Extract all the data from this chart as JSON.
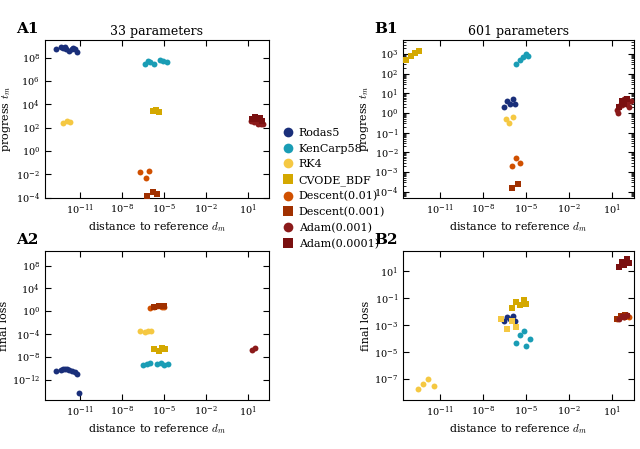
{
  "title_A1": "33 parameters",
  "title_B1": "601 parameters",
  "xlabel": "distance to reference $d_m$",
  "ylabel_top": "progress $t_m$",
  "ylabel_bot": "final loss",
  "legend_entries": [
    {
      "label": "Rodas5",
      "color": "#1a2f7a",
      "marker": "o"
    },
    {
      "label": "KenCarp58",
      "color": "#1a9db5",
      "marker": "o"
    },
    {
      "label": "RK4",
      "color": "#f5c842",
      "marker": "o"
    },
    {
      "label": "CVODE_BDF",
      "color": "#d4a800",
      "marker": "s"
    },
    {
      "label": "Descent(0.01)",
      "color": "#d05000",
      "marker": "o"
    },
    {
      "label": "Descent(0.001)",
      "color": "#a03000",
      "marker": "s"
    },
    {
      "label": "Adam(0.001)",
      "color": "#8b1a1a",
      "marker": "o"
    },
    {
      "label": "Adam(0.0001)",
      "color": "#7a1010",
      "marker": "s"
    }
  ],
  "A1": {
    "xlim": [
      3e-14,
      300.0
    ],
    "ylim": [
      0.0001,
      3000000000.0
    ],
    "xticks": [
      1e-12,
      1e-05,
      100.0
    ],
    "yticks": [
      0.001,
      1000.0,
      1000000000.0
    ],
    "series": [
      {
        "color": "#1a2f7a",
        "marker": "o",
        "x": [
          2e-13,
          4e-13,
          6e-13,
          9e-13,
          1.5e-12,
          2.5e-12,
          4e-12,
          6e-12,
          1e-12,
          3e-12
        ],
        "y": [
          500000000.0,
          800000000.0,
          700000000.0,
          900000000.0,
          400000000.0,
          600000000.0,
          500000000.0,
          300000000.0,
          600000000.0,
          700000000.0
        ]
      },
      {
        "color": "#1a9db5",
        "marker": "o",
        "x": [
          4e-07,
          7e-07,
          1e-06,
          2e-06,
          5e-06,
          8e-06,
          1.5e-05
        ],
        "y": [
          30000000.0,
          50000000.0,
          40000000.0,
          30000000.0,
          60000000.0,
          50000000.0,
          40000000.0
        ]
      },
      {
        "color": "#f5c842",
        "marker": "o",
        "x": [
          6e-13,
          1.2e-12,
          2e-12
        ],
        "y": [
          250.0,
          400.0,
          300.0
        ]
      },
      {
        "color": "#d4a800",
        "marker": "s",
        "x": [
          1.5e-06,
          2.5e-06,
          4e-06
        ],
        "y": [
          2500.0,
          3500.0,
          2000.0
        ]
      },
      {
        "color": "#d05000",
        "marker": "o",
        "x": [
          2e-07,
          5e-07,
          9e-07
        ],
        "y": [
          0.015,
          0.005,
          0.02
        ]
      },
      {
        "color": "#a03000",
        "marker": "s",
        "x": [
          6e-07,
          1.5e-06,
          3e-06
        ],
        "y": [
          0.00015,
          0.0003,
          0.0002
        ]
      },
      {
        "color": "#8b1a1a",
        "marker": "o",
        "x": [
          15.0,
          25.0,
          35.0,
          50.0,
          70.0,
          90.0,
          120.0,
          20.0,
          40.0,
          60.0,
          80.0
        ],
        "y": [
          400.0,
          300.0,
          500.0,
          200.0,
          400.0,
          300.0,
          200.0,
          500.0,
          400.0,
          300.0,
          200.0
        ]
      },
      {
        "color": "#7a1010",
        "marker": "s",
        "x": [
          20.0,
          30.0,
          50.0,
          70.0,
          100.0
        ],
        "y": [
          600.0,
          800.0,
          500.0,
          700.0,
          400.0
        ]
      }
    ]
  },
  "A2": {
    "xlim": [
      3e-14,
      300.0
    ],
    "ylim": [
      3e-16,
      30000000000.0
    ],
    "xticks": [
      1e-12,
      1e-05,
      100.0
    ],
    "yticks": [
      1e-15,
      1e-07,
      10.0
    ],
    "series": [
      {
        "color": "#1a2f7a",
        "marker": "o",
        "x": [
          2e-13,
          4e-13,
          6e-13,
          9e-13,
          1.5e-12,
          2.5e-12,
          4e-12,
          6e-12,
          8e-12,
          1.2e-12
        ],
        "y": [
          3e-11,
          5e-11,
          8e-11,
          6e-11,
          4e-11,
          3e-11,
          2e-11,
          1e-11,
          5e-15,
          7e-11
        ]
      },
      {
        "color": "#1a9db5",
        "marker": "o",
        "x": [
          3e-07,
          6e-07,
          1e-06,
          3e-06,
          6e-06,
          1e-05,
          2e-05
        ],
        "y": [
          4e-10,
          6e-10,
          8e-10,
          5e-10,
          7e-10,
          4e-10,
          6e-10
        ]
      },
      {
        "color": "#f5c842",
        "marker": "o",
        "x": [
          2e-07,
          4e-07,
          7e-07,
          1.2e-06
        ],
        "y": [
          0.0003,
          0.0002,
          0.0004,
          0.0003
        ]
      },
      {
        "color": "#d4a800",
        "marker": "s",
        "x": [
          2e-06,
          4e-06,
          7e-06,
          1.2e-05
        ],
        "y": [
          2e-07,
          1e-07,
          3e-07,
          2e-07
        ]
      },
      {
        "color": "#d05000",
        "marker": "o",
        "x": [
          1e-06,
          2e-06,
          3e-06,
          5e-06,
          7e-06,
          1e-05
        ],
        "y": [
          3.0,
          5.0,
          8.0,
          7.0,
          6.0,
          5.0
        ]
      },
      {
        "color": "#a03000",
        "marker": "s",
        "x": [
          2e-06,
          4e-06,
          7e-06,
          1e-05
        ],
        "y": [
          5.0,
          9.0,
          8.0,
          7.0
        ]
      },
      {
        "color": "#8b1a1a",
        "marker": "o",
        "x": [
          20.0,
          30.0
        ],
        "y": [
          1.5e-07,
          3e-07
        ]
      }
    ]
  },
  "B1": {
    "xlim": [
      3e-14,
      300.0
    ],
    "ylim": [
      5e-05,
      5000.0
    ],
    "xticks": [
      1e-12,
      1e-05,
      100.0
    ],
    "yticks": [
      0.001,
      1.0,
      1000.0
    ],
    "series": [
      {
        "color": "#1a2f7a",
        "marker": "o",
        "x": [
          3e-07,
          5e-07,
          8e-07,
          1.2e-06,
          1.8e-06
        ],
        "y": [
          2.0,
          4.0,
          3.0,
          5.0,
          3.0
        ]
      },
      {
        "color": "#1a9db5",
        "marker": "o",
        "x": [
          2e-06,
          4e-06,
          6e-06,
          1e-05,
          1.5e-05
        ],
        "y": [
          300.0,
          500.0,
          700.0,
          1000.0,
          800.0
        ]
      },
      {
        "color": "#f5c842",
        "marker": "o",
        "x": [
          4e-07,
          7e-07,
          1.2e-06
        ],
        "y": [
          0.5,
          0.3,
          0.6
        ]
      },
      {
        "color": "#d4a800",
        "marker": "s",
        "x": [
          5e-14,
          1e-13,
          2e-13,
          4e-13
        ],
        "y": [
          500.0,
          800.0,
          1200.0,
          1500.0
        ]
      },
      {
        "color": "#d05000",
        "marker": "o",
        "x": [
          1e-06,
          2e-06,
          4e-06
        ],
        "y": [
          0.002,
          0.005,
          0.003
        ]
      },
      {
        "color": "#a03000",
        "marker": "s",
        "x": [
          1e-06,
          3e-06
        ],
        "y": [
          0.00015,
          0.00025
        ]
      },
      {
        "color": "#8b1a1a",
        "marker": "o",
        "x": [
          20.0,
          30.0,
          40.0,
          60.0,
          80.0,
          100.0,
          150.0,
          200.0,
          25.0,
          50.0,
          70.0,
          90.0
        ],
        "y": [
          1.5,
          2.0,
          3.0,
          5.0,
          4.0,
          3.0,
          2.0,
          4.0,
          1.0,
          2.5,
          4.0,
          3.0
        ]
      },
      {
        "color": "#7a1010",
        "marker": "s",
        "x": [
          30.0,
          50.0,
          70.0,
          100.0
        ],
        "y": [
          2.0,
          4.0,
          3.0,
          5.0
        ]
      }
    ]
  },
  "B2": {
    "xlim": [
      3e-14,
      300.0
    ],
    "ylim": [
      3e-09,
      300.0
    ],
    "xticks": [
      1e-12,
      1e-05,
      100.0
    ],
    "yticks": [
      1e-08,
      0.001,
      100.0
    ],
    "series": [
      {
        "color": "#1a2f7a",
        "marker": "o",
        "x": [
          3e-07,
          5e-07,
          8e-07,
          1.2e-06,
          1.8e-06
        ],
        "y": [
          0.002,
          0.004,
          0.003,
          0.005,
          0.002
        ]
      },
      {
        "color": "#1a9db5",
        "marker": "o",
        "x": [
          2e-06,
          4e-06,
          7e-06,
          1e-05,
          2e-05
        ],
        "y": [
          5e-05,
          0.0002,
          0.0004,
          3e-05,
          0.0001
        ]
      },
      {
        "color": "#f5c842",
        "marker": "o",
        "x": [
          3e-13,
          7e-13,
          1.5e-12,
          4e-12
        ],
        "y": [
          2e-08,
          4e-08,
          1e-07,
          3e-08
        ]
      },
      {
        "color": "#f5c842",
        "marker": "s",
        "x": [
          2e-07,
          5e-07,
          1e-06,
          2e-06
        ],
        "y": [
          0.003,
          0.0005,
          0.002,
          0.0008
        ]
      },
      {
        "color": "#d4a800",
        "marker": "s",
        "x": [
          1e-06,
          2e-06,
          4e-06,
          7e-06,
          1e-05
        ],
        "y": [
          0.02,
          0.05,
          0.03,
          0.08,
          0.04
        ]
      },
      {
        "color": "#d05000",
        "marker": "o",
        "x": [
          20.0,
          40.0,
          60.0,
          80.0,
          100.0,
          150.0
        ],
        "y": [
          0.003,
          0.005,
          0.004,
          0.006,
          0.005,
          0.004
        ]
      },
      {
        "color": "#a03000",
        "marker": "s",
        "x": [
          20.0,
          40.0,
          60.0,
          80.0,
          100.0
        ],
        "y": [
          0.003,
          0.005,
          0.004,
          0.006,
          0.005
        ]
      },
      {
        "color": "#8b1a1a",
        "marker": "o",
        "x": [
          30.0,
          50.0,
          70.0,
          100.0
        ],
        "y": [
          0.003,
          0.005,
          0.004,
          0.006
        ]
      },
      {
        "color": "#7a1010",
        "marker": "s",
        "x": [
          30.0,
          50.0,
          70.0,
          100.0,
          150.0
        ],
        "y": [
          20.0,
          50.0,
          30.0,
          80.0,
          40.0
        ]
      }
    ]
  }
}
